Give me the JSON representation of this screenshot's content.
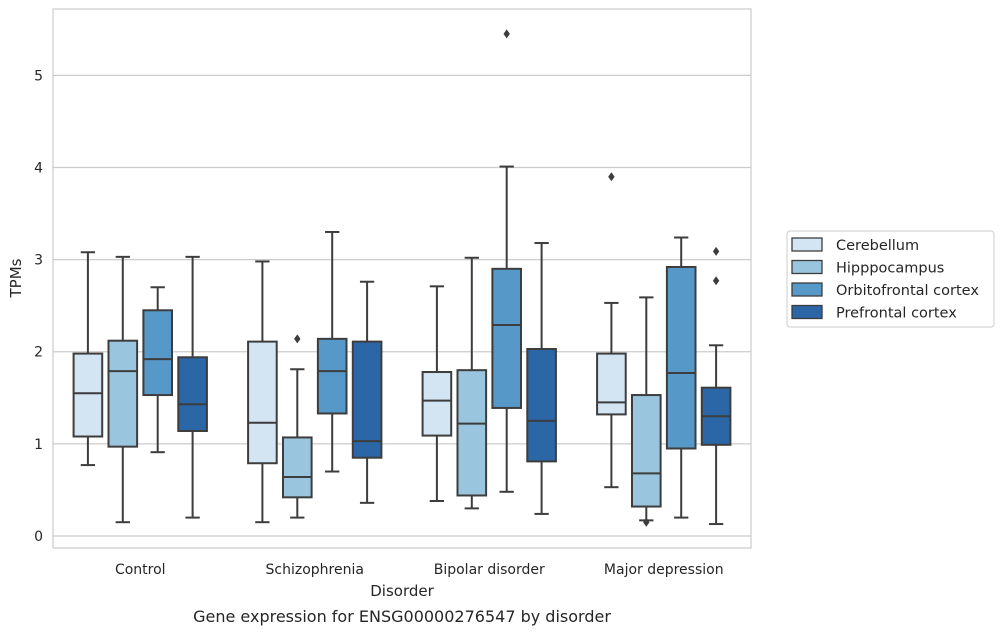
{
  "chart_data": {
    "type": "boxplot",
    "caption": "Gene expression for ENSG00000276547 by disorder",
    "xlabel": "Disorder",
    "ylabel": "TPMs",
    "ylim": [
      -0.13,
      5.72
    ],
    "yticks": [
      0,
      1,
      2,
      3,
      4,
      5
    ],
    "grid": "horizontal",
    "legend_position": "right",
    "categories": [
      "Control",
      "Schizophrenia",
      "Bipolar disorder",
      "Major depression"
    ],
    "series": [
      {
        "name": "Cerebellum",
        "color": "#d3e4f3",
        "boxes": [
          {
            "whislo": 0.77,
            "q1": 1.08,
            "med": 1.55,
            "q3": 1.98,
            "whishi": 3.08,
            "fliers": []
          },
          {
            "whislo": 0.15,
            "q1": 0.79,
            "med": 1.23,
            "q3": 2.11,
            "whishi": 2.98,
            "fliers": []
          },
          {
            "whislo": 0.38,
            "q1": 1.09,
            "med": 1.47,
            "q3": 1.78,
            "whishi": 2.71,
            "fliers": []
          },
          {
            "whislo": 0.53,
            "q1": 1.32,
            "med": 1.45,
            "q3": 1.98,
            "whishi": 2.53,
            "fliers": [
              3.9
            ]
          }
        ]
      },
      {
        "name": "Hipppocampus",
        "color": "#9ac5de",
        "boxes": [
          {
            "whislo": 0.15,
            "q1": 0.97,
            "med": 1.79,
            "q3": 2.12,
            "whishi": 3.03,
            "fliers": []
          },
          {
            "whislo": 0.2,
            "q1": 0.42,
            "med": 0.64,
            "q3": 1.07,
            "whishi": 1.81,
            "fliers": [
              2.14
            ]
          },
          {
            "whislo": 0.3,
            "q1": 0.44,
            "med": 1.22,
            "q3": 1.8,
            "whishi": 3.02,
            "fliers": []
          },
          {
            "whislo": 0.17,
            "q1": 0.32,
            "med": 0.68,
            "q3": 1.53,
            "whishi": 2.59,
            "fliers": [
              0.15
            ]
          }
        ]
      },
      {
        "name": "Orbitofrontal cortex",
        "color": "#5698c8",
        "boxes": [
          {
            "whislo": 0.91,
            "q1": 1.53,
            "med": 1.92,
            "q3": 2.45,
            "whishi": 2.7,
            "fliers": []
          },
          {
            "whislo": 0.7,
            "q1": 1.33,
            "med": 1.79,
            "q3": 2.14,
            "whishi": 3.3,
            "fliers": []
          },
          {
            "whislo": 0.48,
            "q1": 1.39,
            "med": 2.29,
            "q3": 2.9,
            "whishi": 4.01,
            "fliers": [
              5.45
            ]
          },
          {
            "whislo": 0.2,
            "q1": 0.95,
            "med": 1.77,
            "q3": 2.92,
            "whishi": 3.24,
            "fliers": []
          }
        ]
      },
      {
        "name": "Prefrontal cortex",
        "color": "#2b66a6",
        "boxes": [
          {
            "whislo": 0.2,
            "q1": 1.14,
            "med": 1.43,
            "q3": 1.94,
            "whishi": 3.03,
            "fliers": []
          },
          {
            "whislo": 0.36,
            "q1": 0.85,
            "med": 1.03,
            "q3": 2.11,
            "whishi": 2.76,
            "fliers": []
          },
          {
            "whislo": 0.24,
            "q1": 0.81,
            "med": 1.25,
            "q3": 2.03,
            "whishi": 3.18,
            "fliers": []
          },
          {
            "whislo": 0.13,
            "q1": 0.99,
            "med": 1.3,
            "q3": 1.61,
            "whishi": 2.07,
            "fliers": [
              2.77,
              3.09
            ]
          }
        ]
      }
    ]
  }
}
